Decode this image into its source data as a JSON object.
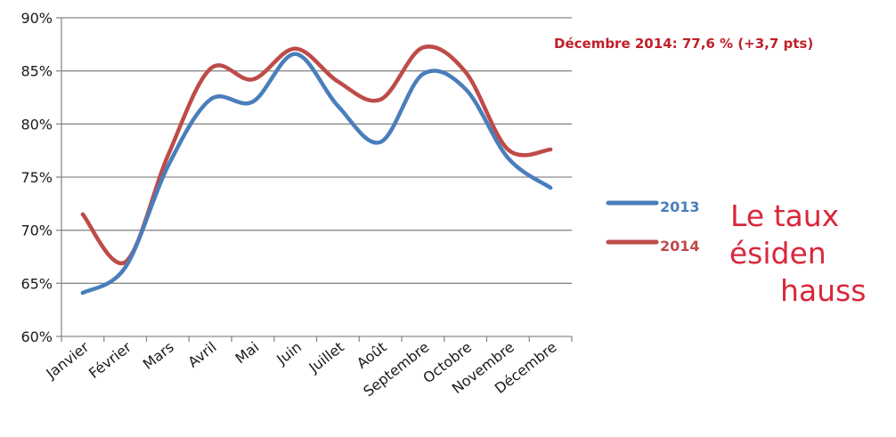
{
  "chart_data": {
    "type": "line",
    "categories": [
      "Janvier",
      "Février",
      "Mars",
      "Avril",
      "Mai",
      "Juin",
      "Juillet",
      "Août",
      "Septembre",
      "Octobre",
      "Novembre",
      "Décembre"
    ],
    "series": [
      {
        "name": "2013",
        "color": "#4a7ebb",
        "values": [
          64.1,
          66.5,
          76.0,
          82.3,
          82.1,
          86.6,
          81.7,
          78.3,
          84.7,
          83.3,
          76.8,
          74.0
        ]
      },
      {
        "name": "2014",
        "color": "#be4b48",
        "values": [
          71.5,
          67.0,
          77.0,
          85.2,
          84.2,
          87.1,
          84.0,
          82.3,
          87.2,
          84.9,
          77.6,
          77.6
        ]
      }
    ],
    "y_ticks": [
      "60%",
      "65%",
      "70%",
      "75%",
      "80%",
      "85%",
      "90%"
    ],
    "ylim": [
      60,
      90
    ],
    "grid": true,
    "legend_position": "right"
  },
  "annotation": "Décembre 2014: 77,6 % (+3,7 pts)",
  "side_text": [
    "Le taux",
    "résiden",
    "hauss"
  ]
}
